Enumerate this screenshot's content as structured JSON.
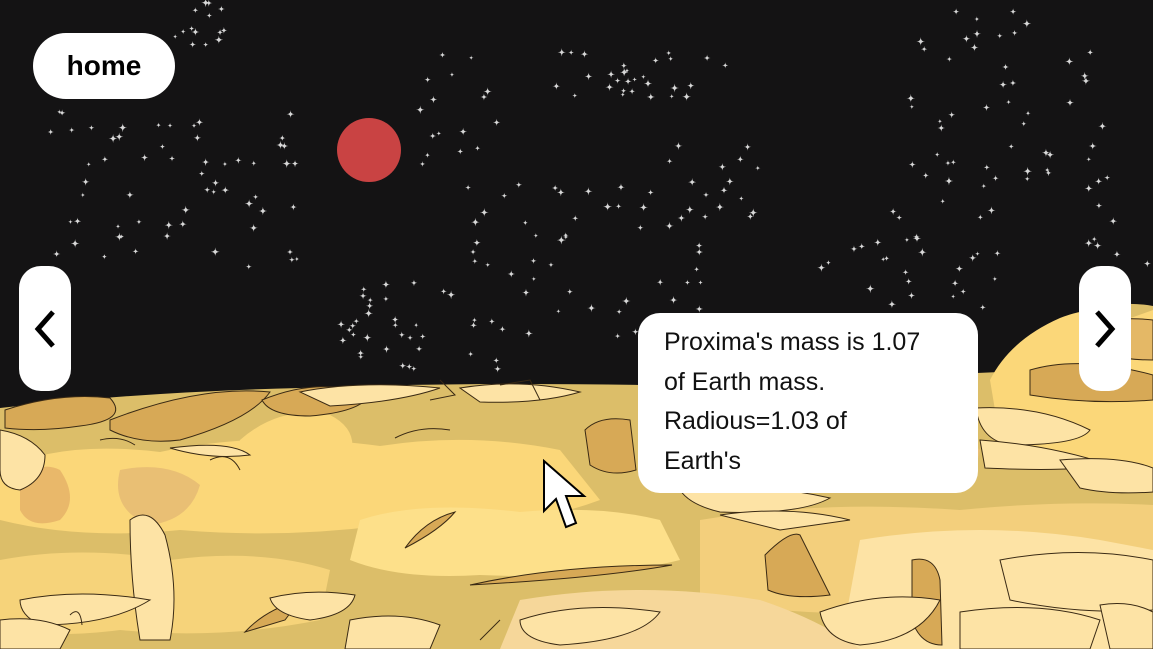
{
  "nav": {
    "home_label": "home",
    "prev_icon": "chevron-left-icon",
    "next_icon": "chevron-right-icon"
  },
  "info": {
    "lines": [
      "Proxima's mass is 1.07",
      "of Earth mass.",
      "Radious=1.03 of",
      "Earth's"
    ]
  },
  "colors": {
    "sky": "#141314",
    "planet": "#c94343",
    "star": "#d8d8d8",
    "ground_light": "#fde3a5",
    "ground_mid": "#fbd779",
    "ground_dark": "#d7a956",
    "outline": "#3a2a14"
  }
}
